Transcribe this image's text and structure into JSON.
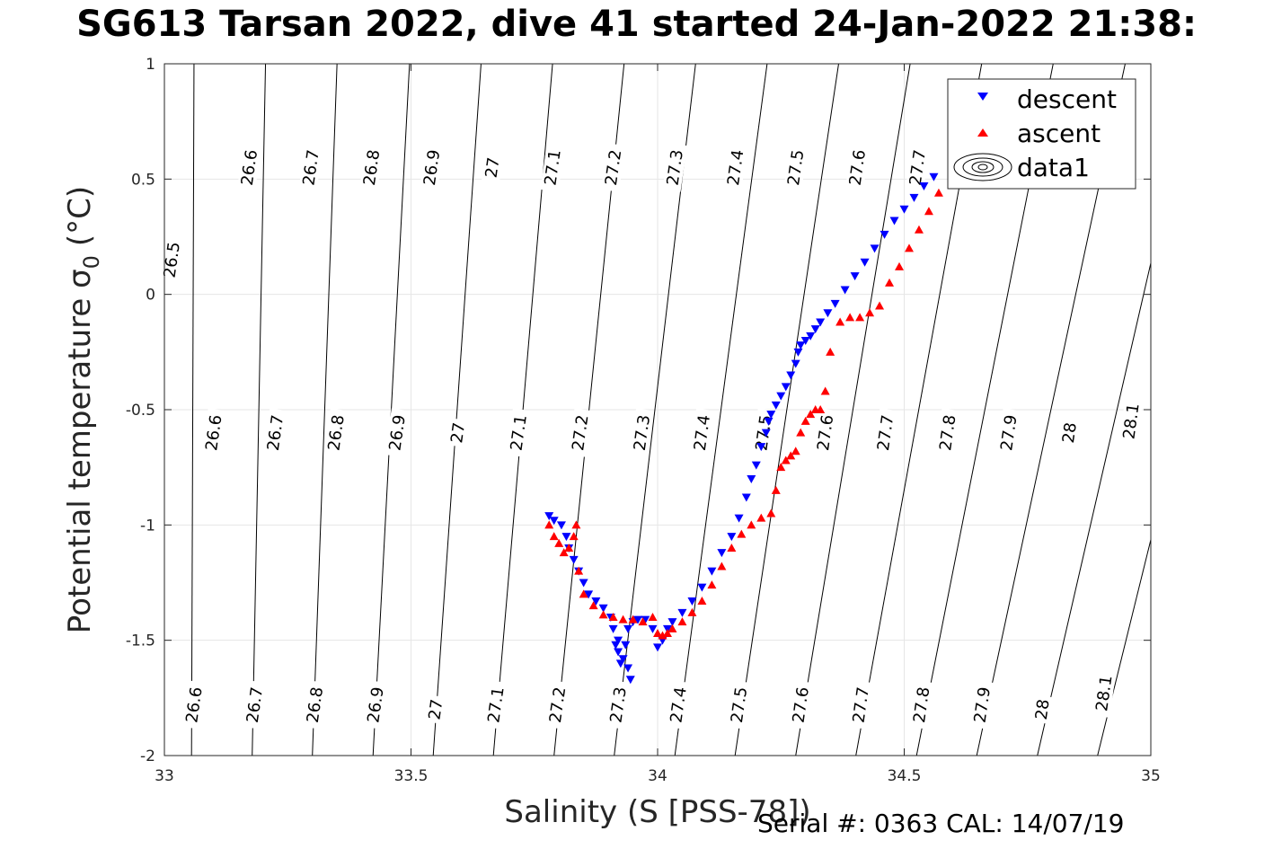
{
  "chart_data": {
    "type": "scatter",
    "title": "SG613 Tarsan 2022, dive 41 started 24-Jan-2022 21:38:",
    "xlabel": "Salinity (S [PSS-78])",
    "ylabel": "Potential temperature",
    "ylabel_symbol": "σ",
    "ylabel_subscript": "0",
    "ylabel_unit": "(°C)",
    "xlim": [
      33,
      35
    ],
    "ylim": [
      -2,
      1
    ],
    "xticks": [
      "33",
      "33.5",
      "34",
      "34.5",
      "35"
    ],
    "yticks": [
      "1",
      "0.5",
      "0",
      "-0.5",
      "-1",
      "-1.5",
      "-2"
    ],
    "grid": true,
    "legend_position": "top-right",
    "legend": [
      "descent",
      "ascent",
      "data1"
    ],
    "footer": "Serial #: 0363  CAL: 14/07/19",
    "isopycnals": {
      "levels": [
        26.5,
        26.6,
        26.7,
        26.8,
        26.9,
        27.0,
        27.1,
        27.2,
        27.3,
        27.4,
        27.5,
        27.6,
        27.7,
        27.8,
        27.9,
        28.0,
        28.1
      ],
      "salinity_at_theta_minus2": [
        32.93,
        33.055,
        33.178,
        33.3,
        33.423,
        33.545,
        33.667,
        33.79,
        33.912,
        34.035,
        34.157,
        34.28,
        34.402,
        34.525,
        34.647,
        34.77,
        34.892
      ],
      "salinity_at_theta_1": [
        32.94,
        33.06,
        33.205,
        33.35,
        33.497,
        33.642,
        33.787,
        33.932,
        34.077,
        34.222,
        34.367,
        34.512,
        34.657,
        34.802,
        34.948,
        35.093,
        35.238
      ],
      "labels_top": [
        {
          "text": "26.5",
          "s": 33.015,
          "t": 0.15
        },
        {
          "text": "26.6",
          "s": 33.172,
          "t": 0.55
        },
        {
          "text": "26.7",
          "s": 33.297,
          "t": 0.55
        },
        {
          "text": "26.8",
          "s": 33.42,
          "t": 0.55
        },
        {
          "text": "26.9",
          "s": 33.542,
          "t": 0.55
        },
        {
          "text": "27",
          "s": 33.665,
          "t": 0.55
        },
        {
          "text": "27.1",
          "s": 33.787,
          "t": 0.55
        },
        {
          "text": "27.2",
          "s": 33.91,
          "t": 0.55
        },
        {
          "text": "27.3",
          "s": 34.035,
          "t": 0.55
        },
        {
          "text": "27.4",
          "s": 34.158,
          "t": 0.55
        },
        {
          "text": "27.5",
          "s": 34.28,
          "t": 0.55
        },
        {
          "text": "27.6",
          "s": 34.405,
          "t": 0.55
        },
        {
          "text": "27.7",
          "s": 34.527,
          "t": 0.55
        }
      ],
      "labels_mid": [
        {
          "text": "26.6",
          "s": 33.1,
          "t": -0.6
        },
        {
          "text": "26.7",
          "s": 33.225,
          "t": -0.6
        },
        {
          "text": "26.8",
          "s": 33.348,
          "t": -0.6
        },
        {
          "text": "26.9",
          "s": 33.472,
          "t": -0.6
        },
        {
          "text": "27",
          "s": 33.595,
          "t": -0.6
        },
        {
          "text": "27.1",
          "s": 33.718,
          "t": -0.6
        },
        {
          "text": "27.2",
          "s": 33.843,
          "t": -0.6
        },
        {
          "text": "27.3",
          "s": 33.968,
          "t": -0.6
        },
        {
          "text": "27.4",
          "s": 34.09,
          "t": -0.6
        },
        {
          "text": "27.5",
          "s": 34.215,
          "t": -0.6
        },
        {
          "text": "27.6",
          "s": 34.34,
          "t": -0.6
        },
        {
          "text": "27.7",
          "s": 34.462,
          "t": -0.6
        },
        {
          "text": "27.8",
          "s": 34.588,
          "t": -0.6
        },
        {
          "text": "27.9",
          "s": 34.712,
          "t": -0.6
        },
        {
          "text": "28",
          "s": 34.835,
          "t": -0.6
        },
        {
          "text": "28.1",
          "s": 34.96,
          "t": -0.55
        }
      ],
      "labels_bottom": [
        {
          "text": "26.6",
          "s": 33.06,
          "t": -1.78
        },
        {
          "text": "26.7",
          "s": 33.183,
          "t": -1.78
        },
        {
          "text": "26.8",
          "s": 33.305,
          "t": -1.78
        },
        {
          "text": "26.9",
          "s": 33.428,
          "t": -1.78
        },
        {
          "text": "27",
          "s": 33.55,
          "t": -1.8
        },
        {
          "text": "27.1",
          "s": 33.672,
          "t": -1.78
        },
        {
          "text": "27.2",
          "s": 33.797,
          "t": -1.78
        },
        {
          "text": "27.3",
          "s": 33.92,
          "t": -1.78
        },
        {
          "text": "27.4",
          "s": 34.042,
          "t": -1.78
        },
        {
          "text": "27.5",
          "s": 34.165,
          "t": -1.78
        },
        {
          "text": "27.6",
          "s": 34.29,
          "t": -1.78
        },
        {
          "text": "27.7",
          "s": 34.412,
          "t": -1.78
        },
        {
          "text": "27.8",
          "s": 34.535,
          "t": -1.78
        },
        {
          "text": "27.9",
          "s": 34.658,
          "t": -1.78
        },
        {
          "text": "28",
          "s": 34.78,
          "t": -1.8
        },
        {
          "text": "28.1",
          "s": 34.905,
          "t": -1.73
        }
      ]
    },
    "series": [
      {
        "name": "descent",
        "marker": "triangle-down",
        "color": "#0000ff",
        "x": [
          33.78,
          33.79,
          33.805,
          33.815,
          33.82,
          33.83,
          33.84,
          33.85,
          33.86,
          33.875,
          33.89,
          33.905,
          33.92,
          33.93,
          33.94,
          33.945,
          33.91,
          33.915,
          33.92,
          33.925,
          33.935,
          33.94,
          33.95,
          33.96,
          33.975,
          33.99,
          34.0,
          34.01,
          34.02,
          34.03,
          34.05,
          34.07,
          34.09,
          34.11,
          34.13,
          34.15,
          34.165,
          34.18,
          34.19,
          34.2,
          34.21,
          34.22,
          34.225,
          34.23,
          34.24,
          34.25,
          34.26,
          34.27,
          34.28,
          34.285,
          34.29,
          34.3,
          34.31,
          34.32,
          34.33,
          34.345,
          34.36,
          34.38,
          34.4,
          34.42,
          34.44,
          34.46,
          34.48,
          34.5,
          34.52,
          34.54,
          34.56
        ],
        "y": [
          -0.96,
          -0.98,
          -1.0,
          -1.05,
          -1.1,
          -1.15,
          -1.2,
          -1.25,
          -1.3,
          -1.33,
          -1.36,
          -1.4,
          -1.5,
          -1.58,
          -1.62,
          -1.67,
          -1.45,
          -1.52,
          -1.55,
          -1.6,
          -1.52,
          -1.45,
          -1.42,
          -1.41,
          -1.41,
          -1.45,
          -1.53,
          -1.5,
          -1.45,
          -1.42,
          -1.38,
          -1.33,
          -1.27,
          -1.2,
          -1.12,
          -1.05,
          -0.97,
          -0.88,
          -0.8,
          -0.74,
          -0.66,
          -0.6,
          -0.55,
          -0.52,
          -0.48,
          -0.44,
          -0.4,
          -0.35,
          -0.3,
          -0.25,
          -0.22,
          -0.2,
          -0.18,
          -0.15,
          -0.12,
          -0.08,
          -0.04,
          0.02,
          0.08,
          0.14,
          0.2,
          0.26,
          0.32,
          0.37,
          0.42,
          0.47,
          0.51
        ]
      },
      {
        "name": "ascent",
        "marker": "triangle-up",
        "color": "#ff0000",
        "x": [
          33.78,
          33.79,
          33.8,
          33.81,
          33.82,
          33.83,
          33.835,
          33.84,
          33.85,
          33.87,
          33.89,
          33.91,
          33.93,
          33.95,
          33.97,
          33.99,
          34.0,
          34.01,
          34.02,
          34.03,
          34.05,
          34.07,
          34.09,
          34.11,
          34.13,
          34.15,
          34.17,
          34.19,
          34.21,
          34.23,
          34.24,
          34.25,
          34.26,
          34.27,
          34.28,
          34.29,
          34.3,
          34.31,
          34.32,
          34.33,
          34.34,
          34.35,
          34.37,
          34.39,
          34.41,
          34.43,
          34.45,
          34.47,
          34.49,
          34.51,
          34.53,
          34.55,
          34.57
        ],
        "y": [
          -1.0,
          -1.05,
          -1.08,
          -1.12,
          -1.1,
          -1.05,
          -1.0,
          -1.2,
          -1.3,
          -1.35,
          -1.39,
          -1.4,
          -1.41,
          -1.41,
          -1.42,
          -1.4,
          -1.47,
          -1.48,
          -1.47,
          -1.45,
          -1.42,
          -1.38,
          -1.33,
          -1.26,
          -1.18,
          -1.1,
          -1.04,
          -1.0,
          -0.97,
          -0.95,
          -0.85,
          -0.75,
          -0.72,
          -0.7,
          -0.68,
          -0.6,
          -0.55,
          -0.52,
          -0.5,
          -0.5,
          -0.42,
          -0.25,
          -0.12,
          -0.1,
          -0.1,
          -0.08,
          -0.05,
          0.05,
          0.12,
          0.2,
          0.28,
          0.36,
          0.44
        ]
      },
      {
        "name": "data1",
        "marker": "contour"
      }
    ]
  }
}
